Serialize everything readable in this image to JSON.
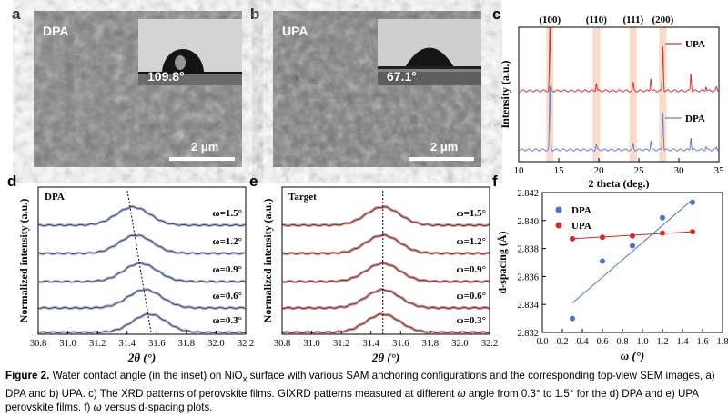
{
  "figure": {
    "panels": {
      "a": {
        "label": "a",
        "tag": "DPA",
        "contact_angle": "109.8°",
        "scale": "2 μm"
      },
      "b": {
        "label": "b",
        "tag": "UPA",
        "contact_angle": "67.1°",
        "scale": "2 μm"
      },
      "c": {
        "label": "c"
      },
      "d": {
        "label": "d",
        "tag": "DPA"
      },
      "e": {
        "label": "e",
        "tag": "Target"
      },
      "f": {
        "label": "f"
      }
    },
    "caption": {
      "label": "Figure 2.",
      "text": "Water contact angle (in the inset) on NiOx surface with various SAM anchoring configurations and the corresponding top-view SEM images, a) DPA and b) UPA. c) The XRD patterns of perovskite films. GIXRD patterns measured at different ω angle from 0.3° to 1.5° for the d) DPA and e) UPA perovskite films. f) ω versus d-spacing plots.",
      "line1": "Water contact angle (in the inset) on NiO",
      "sub_x": "x",
      "line1b": " surface with various SAM anchoring configurations and the corresponding top-view SEM images,",
      "line2": "a) DPA and b) UPA. c) The XRD patterns of perovskite films. GIXRD patterns measured at different ",
      "omega": "ω",
      "line2b": " angle from 0.3° to 1.5° for the d) DPA and e) UPA",
      "line3": "perovskite films. f) ",
      "line3b": " versus d-spacing plots."
    },
    "colors": {
      "dpa": "#6a80c0",
      "upa": "#c43c3c",
      "peak_band": "#f7dcc9",
      "dpa_marker": "#4e6fc4",
      "upa_marker": "#cc2f2f"
    }
  },
  "chart_data": [
    {
      "panel": "c",
      "type": "line",
      "xlabel": "2 theta (deg.)",
      "ylabel": "Intensity (a.u.)",
      "xlim": [
        10,
        35
      ],
      "x_ticks": [
        "10",
        "15",
        "20",
        "25",
        "30",
        "35"
      ],
      "peak_labels": [
        {
          "label": "(100)",
          "x": 13.9
        },
        {
          "label": "(110)",
          "x": 19.7
        },
        {
          "label": "(111)",
          "x": 24.3
        },
        {
          "label": "(200)",
          "x": 28.0
        }
      ],
      "series": [
        {
          "name": "UPA",
          "peaks": [
            [
              13.9,
              1.0
            ],
            [
              19.7,
              0.12
            ],
            [
              24.3,
              0.12
            ],
            [
              26.5,
              0.2
            ],
            [
              28.0,
              0.68
            ],
            [
              31.5,
              0.27
            ],
            [
              33.4,
              0.07
            ],
            [
              34.7,
              0.05
            ]
          ]
        },
        {
          "name": "DPA",
          "peaks": [
            [
              13.9,
              1.0
            ],
            [
              19.7,
              0.08
            ],
            [
              24.3,
              0.09
            ],
            [
              26.5,
              0.14
            ],
            [
              28.0,
              0.58
            ],
            [
              31.5,
              0.2
            ],
            [
              33.4,
              0.05
            ],
            [
              34.7,
              0.04
            ]
          ]
        }
      ],
      "legend_placement": "right"
    },
    {
      "panel": "d",
      "type": "line",
      "xlabel": "2θ (°)",
      "ylabel": "Normalized intensity (a.u.)",
      "xlim": [
        30.8,
        32.2
      ],
      "x_ticks": [
        "30.8",
        "31.0",
        "31.2",
        "31.4",
        "31.6",
        "31.8",
        "32.0",
        "32.2"
      ],
      "series": [
        {
          "name": "ω=1.5°",
          "peak_center": 31.44
        },
        {
          "name": "ω=1.2°",
          "peak_center": 31.46
        },
        {
          "name": "ω=0.9°",
          "peak_center": 31.49
        },
        {
          "name": "ω=0.6°",
          "peak_center": 31.52
        },
        {
          "name": "ω=0.3°",
          "peak_center": 31.55
        }
      ]
    },
    {
      "panel": "e",
      "type": "line",
      "xlabel": "2θ (°)",
      "ylabel": "Normalized intensity (a.u.)",
      "xlim": [
        30.8,
        32.2
      ],
      "x_ticks": [
        "30.8",
        "31.0",
        "31.2",
        "31.4",
        "31.6",
        "31.8",
        "32.0",
        "32.2"
      ],
      "series": [
        {
          "name": "ω=1.5°",
          "peak_center": 31.48
        },
        {
          "name": "ω=1.2°",
          "peak_center": 31.48
        },
        {
          "name": "ω=0.9°",
          "peak_center": 31.48
        },
        {
          "name": "ω=0.6°",
          "peak_center": 31.48
        },
        {
          "name": "ω=0.3°",
          "peak_center": 31.48
        }
      ]
    },
    {
      "panel": "f",
      "type": "scatter",
      "xlabel": "ω (°)",
      "ylabel": "d-spacing (Å)",
      "xlim": [
        0.0,
        1.8
      ],
      "ylim": [
        2.832,
        2.842
      ],
      "x_ticks": [
        "0.0",
        "0.2",
        "0.4",
        "0.6",
        "0.8",
        "1.0",
        "1.2",
        "1.4",
        "1.6",
        "1.8"
      ],
      "y_ticks": [
        "2.832",
        "2.834",
        "2.836",
        "2.838",
        "2.840",
        "2.842"
      ],
      "series": [
        {
          "name": "DPA",
          "x": [
            0.3,
            0.6,
            0.9,
            1.2,
            1.5
          ],
          "y": [
            2.833,
            2.8371,
            2.8382,
            2.8402,
            2.8413
          ],
          "fit": [
            [
              0.3,
              2.8341
            ],
            [
              1.5,
              2.8415
            ]
          ]
        },
        {
          "name": "UPA",
          "x": [
            0.3,
            0.6,
            0.9,
            1.2,
            1.5
          ],
          "y": [
            2.8387,
            2.8388,
            2.8389,
            2.8391,
            2.8392
          ],
          "fit": [
            [
              0.3,
              2.8387
            ],
            [
              1.5,
              2.8392
            ]
          ]
        }
      ],
      "legend_placement": "top-left"
    }
  ]
}
